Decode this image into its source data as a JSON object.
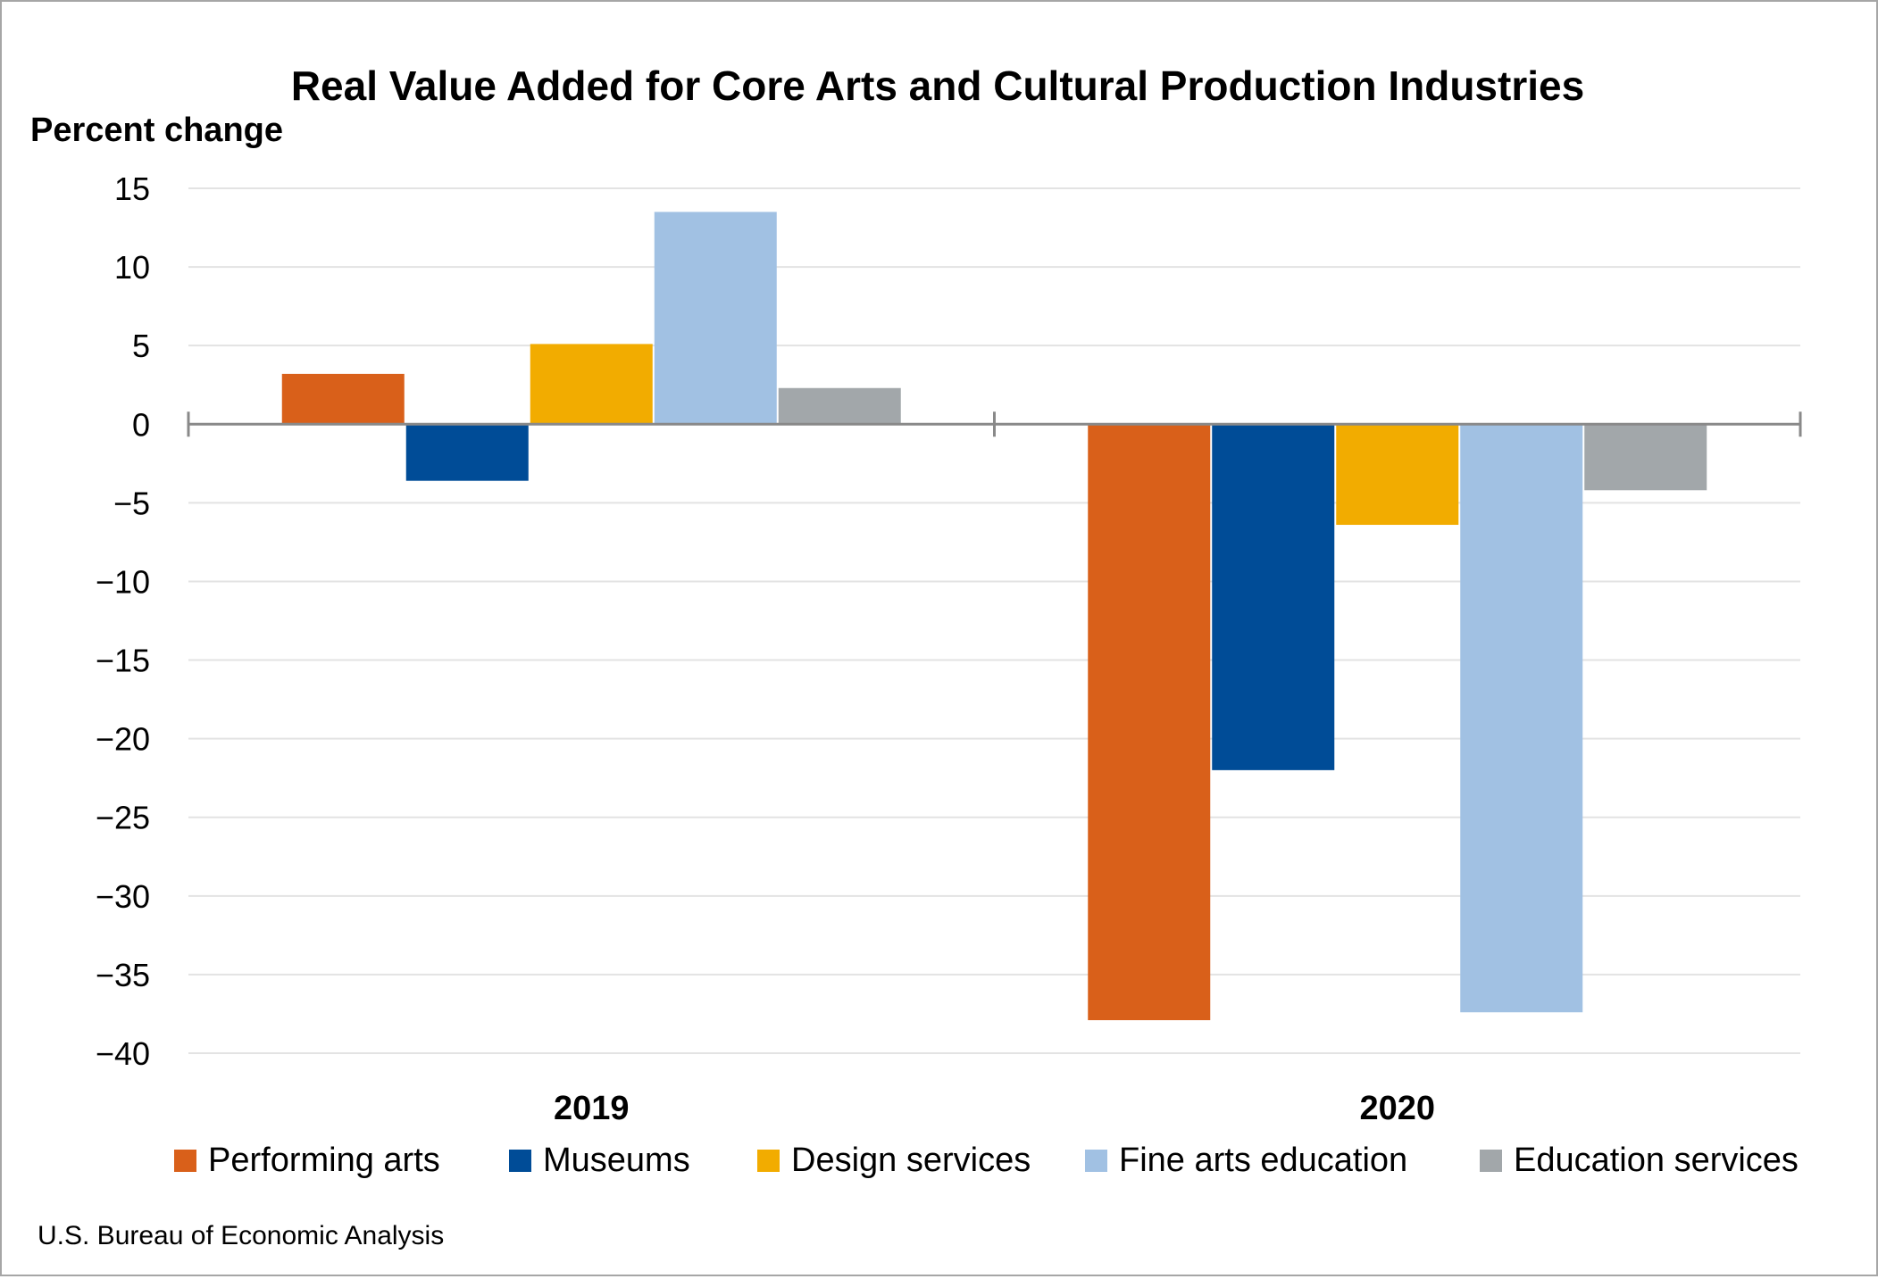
{
  "chart_data": {
    "type": "bar",
    "title": "Real Value Added for Core Arts and Cultural Production Industries",
    "ylabel": "Percent change",
    "xlabel": "",
    "categories": [
      "2019",
      "2020"
    ],
    "series": [
      {
        "name": "Performing arts",
        "color": "#D9601A",
        "values": [
          3.2,
          -37.9
        ]
      },
      {
        "name": "Museums",
        "color": "#004C97",
        "values": [
          -3.6,
          -22.0
        ]
      },
      {
        "name": "Design services",
        "color": "#F2AC00",
        "values": [
          5.1,
          -6.4
        ]
      },
      {
        "name": "Fine arts education",
        "color": "#A1C1E3",
        "values": [
          13.5,
          -37.4
        ]
      },
      {
        "name": "Education services",
        "color": "#A2A7AA",
        "values": [
          2.3,
          -4.2
        ]
      }
    ],
    "ylim": [
      -40,
      15
    ],
    "yticks": [
      15,
      10,
      5,
      0,
      -5,
      -10,
      -15,
      -20,
      -25,
      -30,
      -35,
      -40
    ],
    "ytick_labels": [
      "15",
      "10",
      "5",
      "0",
      "−5",
      "−10",
      "−15",
      "−20",
      "−25",
      "−30",
      "−35",
      "−40"
    ],
    "grid": true,
    "legend": "bottom",
    "source": "U.S. Bureau of Economic Analysis"
  }
}
